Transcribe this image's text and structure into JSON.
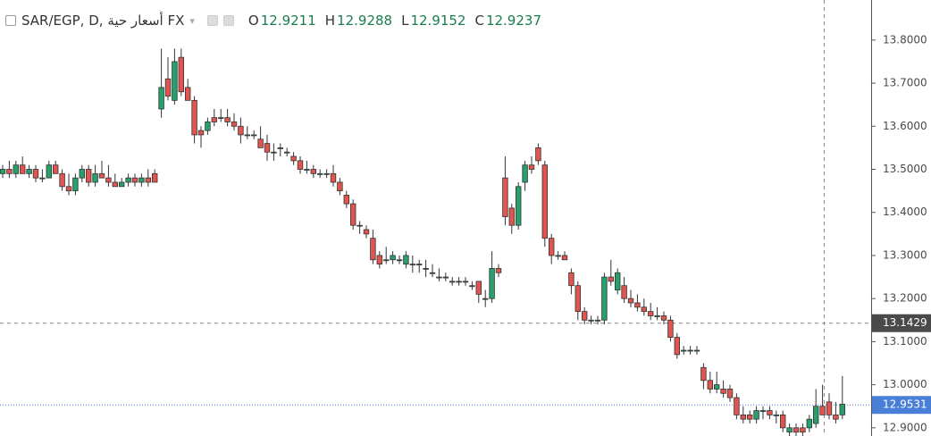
{
  "chart_data": {
    "type": "candlestick",
    "title": "SAR/EGP, D, أسعار حية FX",
    "legend": [
      {
        "key": "O",
        "value": 12.9211
      },
      {
        "key": "H",
        "value": 12.9288
      },
      {
        "key": "L",
        "value": 12.9152
      },
      {
        "key": "C",
        "value": 12.9237
      }
    ],
    "up_color": "#26a16b",
    "down_color": "#e0554f",
    "ylim": [
      12.881,
      13.893
    ],
    "yticks": [
      {
        "value": 12.9,
        "label": "12.9000"
      },
      {
        "value": 13.0,
        "label": "13.0000"
      },
      {
        "value": 13.1,
        "label": "13.1000"
      },
      {
        "value": 13.2,
        "label": "13.2000"
      },
      {
        "value": 13.3,
        "label": "13.3000"
      },
      {
        "value": 13.4,
        "label": "13.4000"
      },
      {
        "value": 13.5,
        "label": "13.5000"
      },
      {
        "value": 13.6,
        "label": "13.6000"
      },
      {
        "value": 13.7,
        "label": "13.7000"
      },
      {
        "value": 13.8,
        "label": "13.8000"
      }
    ],
    "crosshair_price": 13.1429,
    "last_price": 12.9531,
    "ohlc": [
      [
        13.49,
        13.51,
        13.48,
        13.5
      ],
      [
        13.5,
        13.52,
        13.48,
        13.49
      ],
      [
        13.49,
        13.52,
        13.48,
        13.51
      ],
      [
        13.51,
        13.53,
        13.49,
        13.49
      ],
      [
        13.49,
        13.51,
        13.48,
        13.5
      ],
      [
        13.5,
        13.51,
        13.47,
        13.48
      ],
      [
        13.48,
        13.5,
        13.47,
        13.48
      ],
      [
        13.48,
        13.52,
        13.48,
        13.51
      ],
      [
        13.51,
        13.52,
        13.49,
        13.49
      ],
      [
        13.49,
        13.5,
        13.45,
        13.46
      ],
      [
        13.46,
        13.49,
        13.44,
        13.45
      ],
      [
        13.45,
        13.49,
        13.44,
        13.48
      ],
      [
        13.48,
        13.51,
        13.47,
        13.5
      ],
      [
        13.5,
        13.51,
        13.46,
        13.47
      ],
      [
        13.47,
        13.51,
        13.46,
        13.49
      ],
      [
        13.49,
        13.52,
        13.48,
        13.48
      ],
      [
        13.48,
        13.51,
        13.46,
        13.47
      ],
      [
        13.47,
        13.49,
        13.46,
        13.46
      ],
      [
        13.46,
        13.48,
        13.46,
        13.47
      ],
      [
        13.47,
        13.49,
        13.46,
        13.48
      ],
      [
        13.48,
        13.49,
        13.46,
        13.47
      ],
      [
        13.47,
        13.49,
        13.46,
        13.48
      ],
      [
        13.48,
        13.5,
        13.46,
        13.47
      ],
      [
        13.49,
        13.5,
        13.47,
        13.47
      ],
      [
        13.64,
        13.78,
        13.62,
        13.69
      ],
      [
        13.71,
        13.76,
        13.66,
        13.67
      ],
      [
        13.66,
        13.78,
        13.65,
        13.75
      ],
      [
        13.76,
        13.78,
        13.67,
        13.68
      ],
      [
        13.69,
        13.71,
        13.66,
        13.66
      ],
      [
        13.66,
        13.67,
        13.56,
        13.58
      ],
      [
        13.59,
        13.6,
        13.55,
        13.58
      ],
      [
        13.59,
        13.62,
        13.58,
        13.61
      ],
      [
        13.62,
        13.64,
        13.6,
        13.61
      ],
      [
        13.62,
        13.64,
        13.61,
        13.62
      ],
      [
        13.62,
        13.64,
        13.6,
        13.61
      ],
      [
        13.61,
        13.63,
        13.59,
        13.6
      ],
      [
        13.6,
        13.62,
        13.56,
        13.58
      ],
      [
        13.58,
        13.6,
        13.57,
        13.58
      ],
      [
        13.58,
        13.59,
        13.57,
        13.58
      ],
      [
        13.57,
        13.6,
        13.55,
        13.55
      ],
      [
        13.56,
        13.58,
        13.52,
        13.54
      ],
      [
        13.54,
        13.56,
        13.52,
        13.54
      ],
      [
        13.55,
        13.56,
        13.53,
        13.55
      ],
      [
        13.54,
        13.55,
        13.53,
        13.54
      ],
      [
        13.53,
        13.54,
        13.51,
        13.52
      ],
      [
        13.52,
        13.53,
        13.49,
        13.5
      ],
      [
        13.5,
        13.52,
        13.49,
        13.5
      ],
      [
        13.5,
        13.51,
        13.48,
        13.49
      ],
      [
        13.49,
        13.5,
        13.48,
        13.49
      ],
      [
        13.49,
        13.5,
        13.48,
        13.49
      ],
      [
        13.49,
        13.51,
        13.46,
        13.47
      ],
      [
        13.47,
        13.48,
        13.44,
        13.45
      ],
      [
        13.44,
        13.45,
        13.41,
        13.42
      ],
      [
        13.42,
        13.43,
        13.36,
        13.37
      ],
      [
        13.37,
        13.38,
        13.35,
        13.37
      ],
      [
        13.36,
        13.37,
        13.34,
        13.35
      ],
      [
        13.34,
        13.36,
        13.28,
        13.29
      ],
      [
        13.3,
        13.31,
        13.27,
        13.28
      ],
      [
        13.29,
        13.32,
        13.28,
        13.29
      ],
      [
        13.29,
        13.31,
        13.28,
        13.3
      ],
      [
        13.29,
        13.3,
        13.28,
        13.29
      ],
      [
        13.28,
        13.31,
        13.27,
        13.3
      ],
      [
        13.28,
        13.3,
        13.26,
        13.28
      ],
      [
        13.28,
        13.29,
        13.26,
        13.28
      ],
      [
        13.27,
        13.29,
        13.25,
        13.27
      ],
      [
        13.26,
        13.28,
        13.25,
        13.26
      ],
      [
        13.25,
        13.27,
        13.24,
        13.25
      ],
      [
        13.25,
        13.26,
        13.24,
        13.25
      ],
      [
        13.24,
        13.25,
        13.23,
        13.24
      ],
      [
        13.24,
        13.25,
        13.23,
        13.24
      ],
      [
        13.24,
        13.25,
        13.23,
        13.24
      ],
      [
        13.23,
        13.24,
        13.22,
        13.23
      ],
      [
        13.24,
        13.24,
        13.19,
        13.21
      ],
      [
        13.2,
        13.22,
        13.18,
        13.2
      ],
      [
        13.2,
        13.31,
        13.19,
        13.27
      ],
      [
        13.27,
        13.28,
        13.25,
        13.26
      ],
      [
        13.48,
        13.53,
        13.37,
        13.39
      ],
      [
        13.41,
        13.42,
        13.35,
        13.37
      ],
      [
        13.37,
        13.47,
        13.36,
        13.46
      ],
      [
        13.47,
        13.52,
        13.45,
        13.51
      ],
      [
        13.51,
        13.53,
        13.49,
        13.5
      ],
      [
        13.55,
        13.56,
        13.51,
        13.52
      ],
      [
        13.51,
        13.52,
        13.32,
        13.34
      ],
      [
        13.34,
        13.35,
        13.28,
        13.3
      ],
      [
        13.3,
        13.31,
        13.29,
        13.3
      ],
      [
        13.3,
        13.31,
        13.29,
        13.29
      ],
      [
        13.26,
        13.27,
        13.21,
        13.23
      ],
      [
        13.23,
        13.24,
        13.15,
        13.17
      ],
      [
        13.17,
        13.18,
        13.14,
        13.15
      ],
      [
        13.15,
        13.16,
        13.14,
        13.15
      ],
      [
        13.15,
        13.16,
        13.14,
        13.15
      ],
      [
        13.15,
        13.26,
        13.14,
        13.25
      ],
      [
        13.25,
        13.29,
        13.23,
        13.24
      ],
      [
        13.22,
        13.27,
        13.21,
        13.26
      ],
      [
        13.23,
        13.25,
        13.19,
        13.2
      ],
      [
        13.2,
        13.22,
        13.18,
        13.19
      ],
      [
        13.19,
        13.21,
        13.17,
        13.18
      ],
      [
        13.18,
        13.2,
        13.16,
        13.17
      ],
      [
        13.17,
        13.19,
        13.15,
        13.16
      ],
      [
        13.16,
        13.18,
        13.15,
        13.16
      ],
      [
        13.16,
        13.17,
        13.14,
        13.15
      ],
      [
        13.15,
        13.16,
        13.1,
        13.11
      ],
      [
        13.11,
        13.12,
        13.06,
        13.07
      ],
      [
        13.08,
        13.09,
        13.07,
        13.08
      ],
      [
        13.08,
        13.09,
        13.07,
        13.08
      ],
      [
        13.08,
        13.09,
        13.07,
        13.08
      ],
      [
        13.04,
        13.05,
        12.99,
        13.01
      ],
      [
        13.01,
        13.03,
        12.98,
        12.99
      ],
      [
        12.99,
        13.03,
        12.98,
        13.0
      ],
      [
        12.99,
        13.01,
        12.97,
        12.98
      ],
      [
        12.99,
        13.0,
        12.96,
        12.97
      ],
      [
        12.97,
        12.98,
        12.92,
        12.93
      ],
      [
        12.93,
        12.95,
        12.91,
        12.92
      ],
      [
        12.93,
        12.94,
        12.91,
        12.92
      ],
      [
        12.92,
        12.95,
        12.91,
        12.94
      ],
      [
        12.94,
        12.95,
        12.92,
        12.94
      ],
      [
        12.94,
        12.95,
        12.92,
        12.93
      ],
      [
        12.93,
        12.94,
        12.91,
        12.93
      ],
      [
        12.93,
        12.94,
        12.89,
        12.9
      ],
      [
        12.89,
        12.91,
        12.88,
        12.9
      ],
      [
        12.9,
        12.91,
        12.88,
        12.89
      ],
      [
        12.9,
        12.91,
        12.88,
        12.89
      ],
      [
        12.9,
        12.93,
        12.89,
        12.92
      ],
      [
        12.91,
        12.99,
        12.9,
        12.95
      ],
      [
        12.95,
        13.0,
        12.93,
        12.93
      ],
      [
        12.96,
        12.98,
        12.92,
        12.93
      ],
      [
        12.93,
        12.96,
        12.91,
        12.92
      ],
      [
        12.93,
        13.02,
        12.92,
        12.955
      ]
    ]
  }
}
